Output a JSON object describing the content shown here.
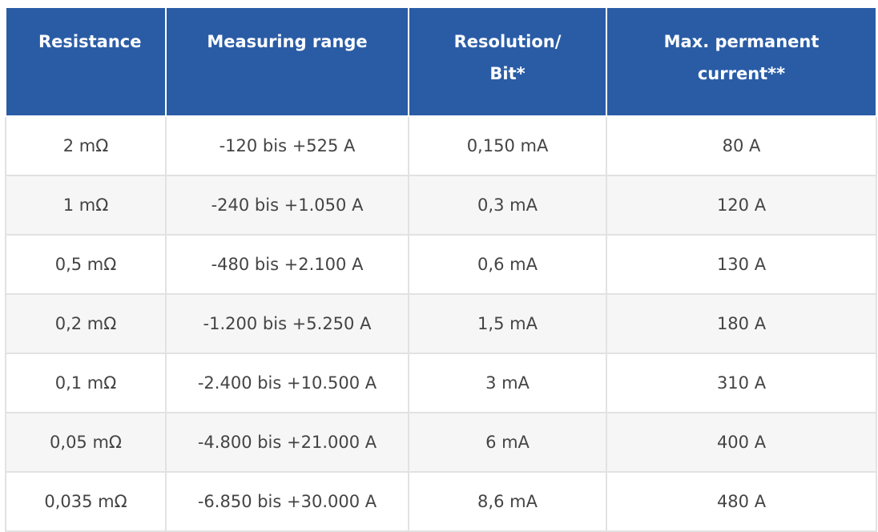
{
  "table": {
    "header": [
      "Resistance",
      "Measuring range",
      "Resolution/ Bit*",
      "Max. permanent current**"
    ],
    "rows": [
      [
        "2 mΩ",
        "-120 bis +525 A",
        "0,150 mA",
        "80 A"
      ],
      [
        "1 mΩ",
        "-240 bis +1.050 A",
        "0,3 mA",
        "120 A"
      ],
      [
        "0,5 mΩ",
        "-480 bis +2.100 A",
        "0,6 mA",
        "130 A"
      ],
      [
        "0,2 mΩ",
        "-1.200 bis +5.250 A",
        "1,5 mA",
        "180 A"
      ],
      [
        "0,1 mΩ",
        "-2.400 bis +10.500 A",
        "3 mA",
        "310 A"
      ],
      [
        "0,05 mΩ",
        "-4.800 bis +21.000 A",
        "6 mA",
        "400 A"
      ],
      [
        "0,035 mΩ",
        "-6.850 bis +30.000 A",
        "8,6 mA",
        "480 A"
      ]
    ]
  }
}
